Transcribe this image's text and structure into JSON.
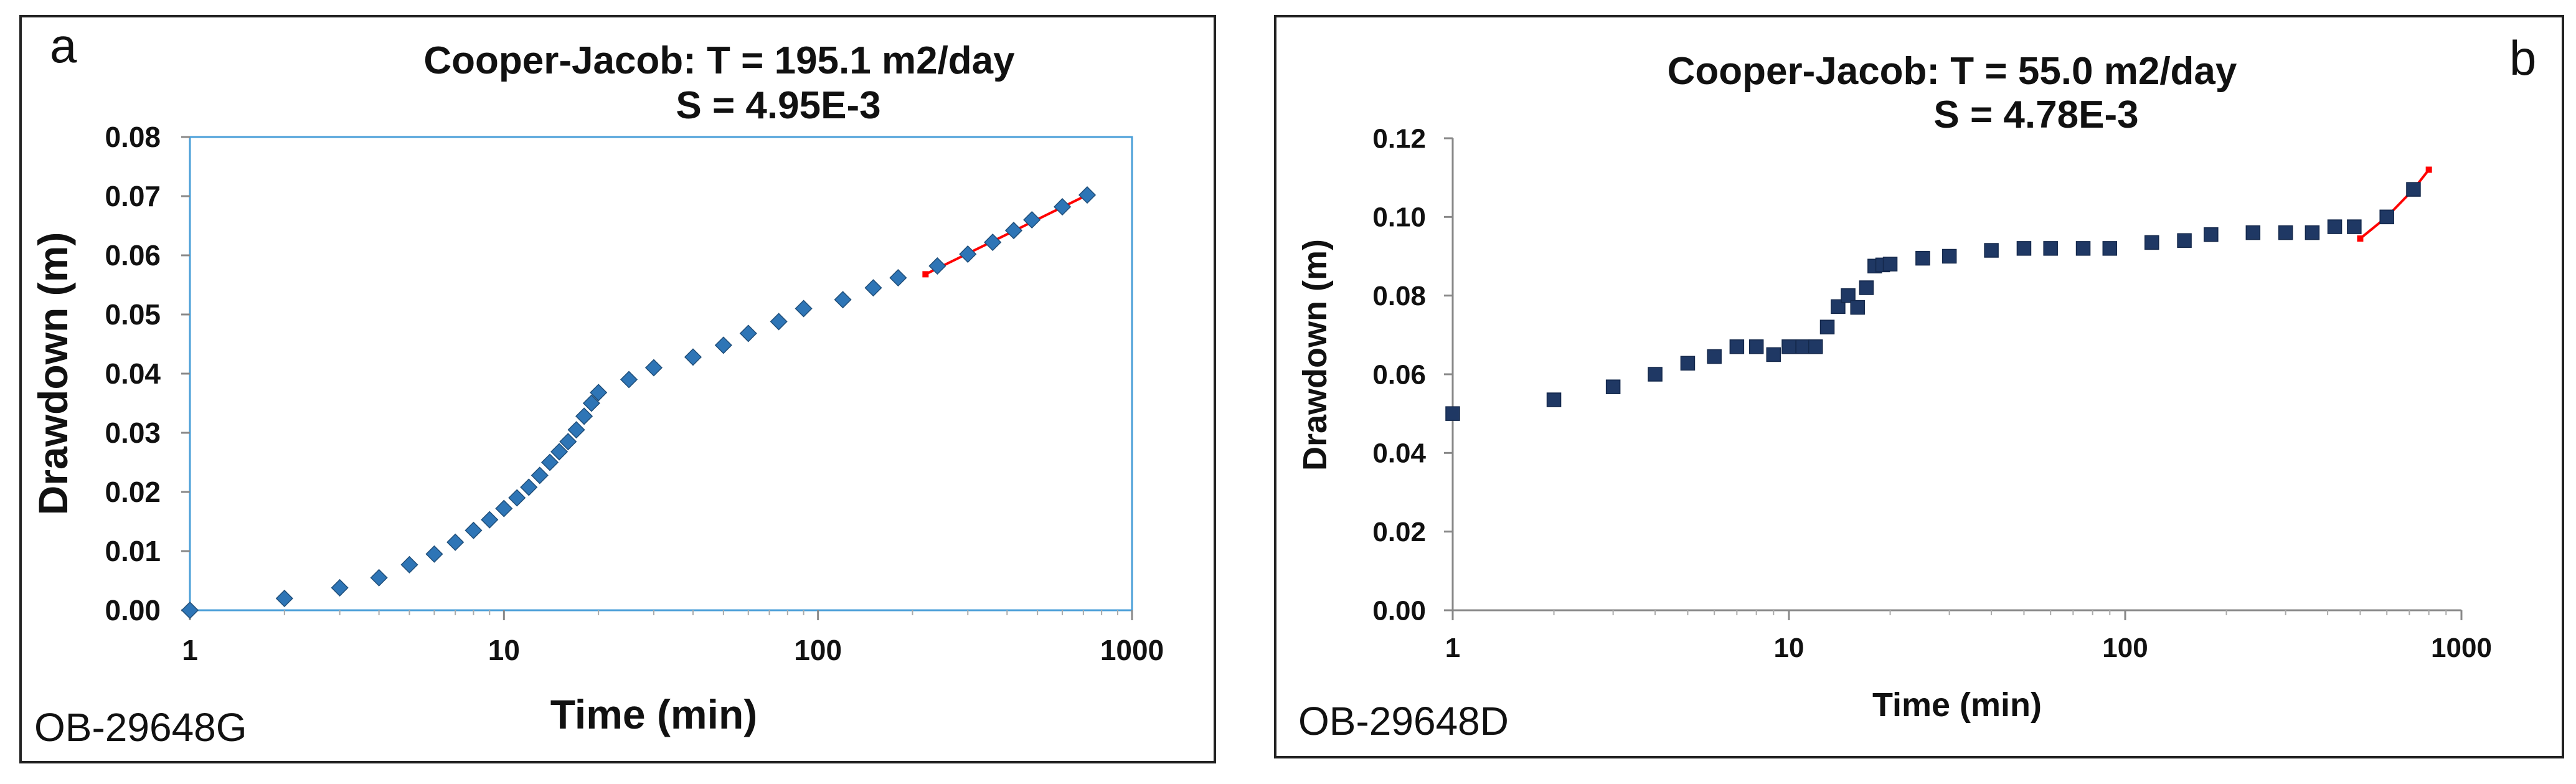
{
  "chart_data": [
    {
      "type": "scatter",
      "panel_label": "a",
      "title": "Cooper-Jacob: T = 195.1 m2/day",
      "subtitle": "S = 4.95E-3",
      "xlabel": "Time (min)",
      "ylabel": "Drawdown (m)",
      "well_label": "OB-29648G",
      "xscale": "log",
      "xlim": [
        1,
        1000
      ],
      "ylim": [
        0,
        0.08
      ],
      "x_ticks": [
        1,
        10,
        100,
        1000
      ],
      "x_tick_labels": [
        "1",
        "10",
        "100",
        "1000"
      ],
      "y_ticks": [
        0,
        0.01,
        0.02,
        0.03,
        0.04,
        0.05,
        0.06,
        0.07,
        0.08
      ],
      "y_tick_labels": [
        "0.00",
        "0.01",
        "0.02",
        "0.03",
        "0.04",
        "0.05",
        "0.06",
        "0.07",
        "0.08"
      ],
      "marker": "diamond",
      "marker_color": "#2e75b6",
      "fit_color": "#ff0000",
      "series": [
        {
          "name": "observed",
          "x": [
            1,
            2,
            3,
            4,
            5,
            6,
            7,
            8,
            9,
            10,
            11,
            12,
            13,
            14,
            15,
            16,
            17,
            18,
            19,
            20,
            25,
            30,
            40,
            50,
            60,
            75,
            90,
            120,
            150,
            180,
            240,
            300,
            360,
            420,
            480,
            600,
            720
          ],
          "y": [
            0.0,
            0.002,
            0.0038,
            0.0055,
            0.0077,
            0.0095,
            0.0115,
            0.0135,
            0.0153,
            0.0172,
            0.019,
            0.0208,
            0.0228,
            0.025,
            0.0268,
            0.0285,
            0.0305,
            0.0328,
            0.035,
            0.0368,
            0.039,
            0.041,
            0.0428,
            0.0448,
            0.0468,
            0.0488,
            0.051,
            0.0525,
            0.0545,
            0.0562,
            0.0582,
            0.0602,
            0.0622,
            0.0642,
            0.066,
            0.0682,
            0.0702
          ]
        },
        {
          "name": "Cooper-Jacob fit",
          "x": [
            220,
            720
          ],
          "y": [
            0.0568,
            0.0702
          ]
        }
      ]
    },
    {
      "type": "scatter",
      "panel_label": "b",
      "title": "Cooper-Jacob: T = 55.0 m2/day",
      "subtitle": "S = 4.78E-3",
      "xlabel": "Time (min)",
      "ylabel": "Drawdown (m)",
      "well_label": "OB-29648D",
      "xscale": "log",
      "xlim": [
        1,
        1000
      ],
      "ylim": [
        0,
        0.12
      ],
      "x_ticks": [
        1,
        10,
        100,
        1000
      ],
      "x_tick_labels": [
        "1",
        "10",
        "100",
        "1000"
      ],
      "y_ticks": [
        0,
        0.02,
        0.04,
        0.06,
        0.08,
        0.1,
        0.12
      ],
      "y_tick_labels": [
        "0.00",
        "0.02",
        "0.04",
        "0.06",
        "0.08",
        "0.10",
        "0.12"
      ],
      "marker": "square",
      "marker_color": "#1f3864",
      "fit_color": "#ff0000",
      "series": [
        {
          "name": "observed",
          "x": [
            1,
            2,
            3,
            4,
            5,
            6,
            7,
            8,
            9,
            10,
            11,
            12,
            13,
            14,
            15,
            16,
            17,
            18,
            19,
            20,
            25,
            30,
            40,
            50,
            60,
            75,
            90,
            120,
            150,
            180,
            240,
            300,
            360,
            420,
            480,
            600,
            720
          ],
          "y": [
            0.05,
            0.0535,
            0.0568,
            0.06,
            0.0628,
            0.0645,
            0.067,
            0.067,
            0.065,
            0.067,
            0.067,
            0.067,
            0.072,
            0.0772,
            0.08,
            0.077,
            0.082,
            0.0875,
            0.0878,
            0.088,
            0.0895,
            0.09,
            0.0915,
            0.092,
            0.092,
            0.092,
            0.092,
            0.0935,
            0.094,
            0.0955,
            0.096,
            0.096,
            0.096,
            0.0975,
            0.0975,
            0.1,
            0.107
          ]
        },
        {
          "name": "Cooper-Jacob fit",
          "x": [
            500,
            600,
            720,
            800
          ],
          "y": [
            0.0945,
            0.1,
            0.107,
            0.112
          ]
        }
      ]
    }
  ]
}
